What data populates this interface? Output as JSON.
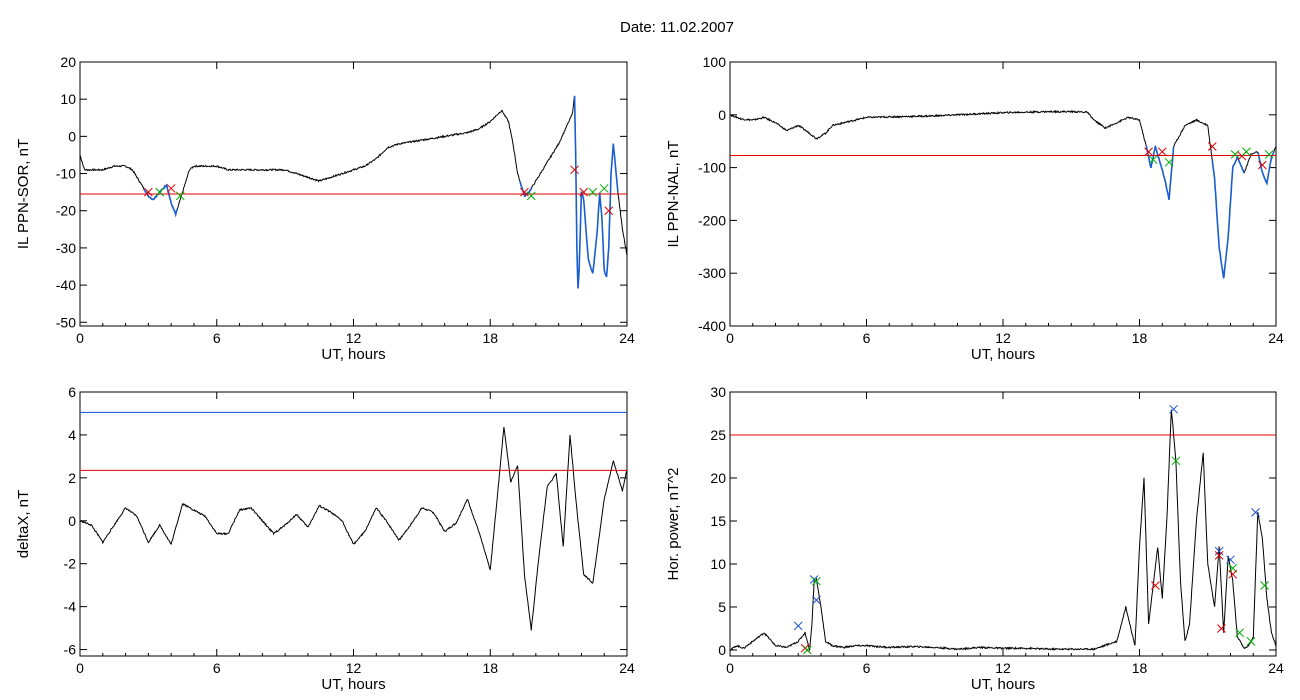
{
  "figure": {
    "title": "Date:  11.02.2007"
  },
  "colors": {
    "trace": "#000000",
    "threshold_red": "#e00000",
    "threshold_blue": "#0050d0",
    "highlight_blue": "#1a5fd0",
    "marker_red": "#e00000",
    "marker_green": "#00b000",
    "marker_blue": "#1a50d0"
  },
  "chart_data": [
    {
      "type": "line",
      "panel": "top-left",
      "xlabel": "UT, hours",
      "ylabel": "IL PPN-SOR, nT",
      "xlim": [
        0,
        24
      ],
      "ylim": [
        -51,
        20
      ],
      "xticks": [
        0,
        6,
        12,
        18,
        24
      ],
      "yticks": [
        20,
        10,
        0,
        -10,
        -20,
        -30,
        -40,
        -50
      ],
      "series": [
        {
          "x": [
            0,
            0.2,
            0.5,
            1,
            1.5,
            2,
            2.3,
            2.6,
            2.8,
            3,
            3.2,
            3.5,
            3.8,
            4.0,
            4.2,
            4.4,
            4.6,
            4.8,
            5,
            5.5,
            6,
            6.5,
            7,
            8,
            9,
            10,
            10.5,
            11,
            12,
            12.5,
            13,
            13.5,
            14,
            15,
            16,
            17,
            17.5,
            18,
            18.5,
            18.8,
            19,
            19.2,
            19.5,
            19.7,
            20,
            20.5,
            21,
            21.3,
            21.6,
            21.7,
            21.75,
            21.8,
            21.85,
            21.9,
            22.0,
            22.1,
            22.3,
            22.5,
            22.7,
            22.8,
            22.9,
            23.0,
            23.1,
            23.2,
            23.3,
            23.4,
            23.6,
            23.8,
            24
          ],
          "y": [
            -5,
            -9,
            -9,
            -9,
            -8,
            -8,
            -9,
            -12,
            -14,
            -16,
            -17,
            -15,
            -13,
            -18,
            -21,
            -17,
            -13,
            -9,
            -8,
            -8,
            -8,
            -9,
            -9,
            -9,
            -9,
            -11,
            -12,
            -11,
            -9,
            -8,
            -6,
            -3,
            -2,
            -1,
            0,
            1,
            2,
            4,
            7,
            4,
            -2,
            -10,
            -16,
            -15,
            -12,
            -7,
            -2,
            2,
            6,
            11,
            -5,
            -30,
            -41,
            -36,
            -15,
            -17,
            -33,
            -37,
            -25,
            -15,
            -22,
            -36,
            -38,
            -30,
            -10,
            -2,
            -15,
            -25,
            -32
          ]
        }
      ],
      "highlight_segments": [
        [
          2.8,
          4.3
        ],
        [
          19.3,
          19.8
        ],
        [
          21.7,
          23.6
        ]
      ],
      "thresholds": [
        {
          "y": -15.5,
          "color": "red"
        }
      ],
      "markers": [
        {
          "x": 3.0,
          "y": -15,
          "color": "red"
        },
        {
          "x": 3.5,
          "y": -15,
          "color": "green"
        },
        {
          "x": 4.0,
          "y": -14,
          "color": "red"
        },
        {
          "x": 4.4,
          "y": -16,
          "color": "green"
        },
        {
          "x": 19.5,
          "y": -15,
          "color": "red"
        },
        {
          "x": 19.8,
          "y": -16,
          "color": "green"
        },
        {
          "x": 21.7,
          "y": -9,
          "color": "red"
        },
        {
          "x": 22.1,
          "y": -15,
          "color": "red"
        },
        {
          "x": 22.5,
          "y": -15,
          "color": "green"
        },
        {
          "x": 23.2,
          "y": -20,
          "color": "red"
        },
        {
          "x": 23.0,
          "y": -14,
          "color": "green"
        }
      ]
    },
    {
      "type": "line",
      "panel": "top-right",
      "xlabel": "UT, hours",
      "ylabel": "IL PPN-NAL, nT",
      "xlim": [
        0,
        24
      ],
      "ylim": [
        -400,
        100
      ],
      "xticks": [
        0,
        6,
        12,
        18,
        24
      ],
      "yticks": [
        100,
        0,
        -100,
        -200,
        -300,
        -400
      ],
      "series": [
        {
          "x": [
            0,
            0.5,
            1,
            1.5,
            2,
            2.5,
            3,
            3.5,
            3.8,
            4.2,
            4.5,
            5,
            6,
            7,
            8,
            9,
            10,
            11,
            12,
            13,
            14,
            15,
            15.7,
            16,
            16.5,
            17,
            17.5,
            18,
            18.3,
            18.5,
            18.7,
            18.9,
            19.1,
            19.3,
            19.5,
            20,
            20.5,
            21,
            21.3,
            21.5,
            21.7,
            21.9,
            22.1,
            22.3,
            22.6,
            22.9,
            23.2,
            23.4,
            23.6,
            23.8,
            24
          ],
          "y": [
            0,
            -8,
            -10,
            -5,
            -15,
            -30,
            -20,
            -35,
            -45,
            -35,
            -20,
            -15,
            -5,
            -4,
            -3,
            -2,
            0,
            2,
            4,
            5,
            6,
            6,
            5,
            -10,
            -25,
            -15,
            -5,
            -10,
            -60,
            -100,
            -60,
            -90,
            -120,
            -160,
            -60,
            -20,
            -10,
            -20,
            -120,
            -250,
            -310,
            -230,
            -100,
            -80,
            -110,
            -75,
            -70,
            -110,
            -130,
            -80,
            -60
          ]
        }
      ],
      "highlight_segments": [
        [
          18.3,
          19.5
        ],
        [
          21.2,
          22.6
        ],
        [
          23.2,
          23.9
        ]
      ],
      "thresholds": [
        {
          "y": -77,
          "color": "red"
        }
      ],
      "markers": [
        {
          "x": 18.4,
          "y": -70,
          "color": "red"
        },
        {
          "x": 18.6,
          "y": -85,
          "color": "green"
        },
        {
          "x": 19.0,
          "y": -70,
          "color": "red"
        },
        {
          "x": 19.3,
          "y": -90,
          "color": "green"
        },
        {
          "x": 21.2,
          "y": -60,
          "color": "red"
        },
        {
          "x": 22.2,
          "y": -75,
          "color": "green"
        },
        {
          "x": 22.5,
          "y": -78,
          "color": "red"
        },
        {
          "x": 22.7,
          "y": -70,
          "color": "green"
        },
        {
          "x": 23.4,
          "y": -95,
          "color": "red"
        },
        {
          "x": 23.7,
          "y": -75,
          "color": "green"
        }
      ]
    },
    {
      "type": "line",
      "panel": "bottom-left",
      "xlabel": "UT, hours",
      "ylabel": "deltaX, nT",
      "xlim": [
        0,
        24
      ],
      "ylim": [
        -6.3,
        6
      ],
      "xticks": [
        0,
        6,
        12,
        18,
        24
      ],
      "yticks": [
        6,
        4,
        2,
        0,
        -2,
        -4,
        -6
      ],
      "series": [
        {
          "x": [
            0,
            0.5,
            1,
            1.5,
            2,
            2.5,
            3,
            3.5,
            4,
            4.5,
            5,
            5.5,
            6,
            6.5,
            7,
            7.5,
            8,
            8.5,
            9,
            9.5,
            10,
            10.5,
            11,
            11.5,
            12,
            12.5,
            13,
            13.5,
            14,
            14.5,
            15,
            15.5,
            16,
            16.5,
            17,
            17.5,
            18,
            18.3,
            18.6,
            18.9,
            19.2,
            19.5,
            19.8,
            20.1,
            20.5,
            20.9,
            21.2,
            21.5,
            21.8,
            22.1,
            22.5,
            23,
            23.4,
            23.8,
            24
          ],
          "y": [
            0,
            -0.2,
            -1,
            -0.2,
            0.6,
            0.2,
            -1,
            -0.2,
            -1.1,
            0.8,
            0.5,
            0.2,
            -0.6,
            -0.6,
            0.5,
            0.6,
            0,
            -0.6,
            -0.2,
            0.3,
            -0.3,
            0.7,
            0.4,
            0,
            -1.1,
            -0.5,
            0.6,
            -0.1,
            -0.9,
            -0.2,
            0.6,
            0.4,
            -0.5,
            -0.1,
            1,
            -0.5,
            -2.3,
            1,
            4.4,
            1.8,
            2.6,
            -2.5,
            -5.1,
            -2,
            1.6,
            2.2,
            -1.2,
            4,
            0.5,
            -2.5,
            -2.9,
            1,
            2.8,
            1.4,
            2.4
          ]
        }
      ],
      "thresholds": [
        {
          "y": 5.05,
          "color": "blue"
        },
        {
          "y": 2.35,
          "color": "red"
        }
      ]
    },
    {
      "type": "line",
      "panel": "bottom-right",
      "xlabel": "UT, hours",
      "ylabel": "Hor. power, nT^2",
      "xlim": [
        0,
        24
      ],
      "ylim": [
        -0.7,
        30
      ],
      "xticks": [
        0,
        6,
        12,
        18,
        24
      ],
      "yticks": [
        30,
        25,
        20,
        15,
        10,
        5,
        0
      ],
      "series": [
        {
          "x": [
            0,
            0.3,
            0.6,
            1,
            1.5,
            2,
            2.5,
            3,
            3.3,
            3.5,
            3.6,
            3.7,
            3.8,
            4.0,
            4.2,
            4.5,
            5,
            5.5,
            6,
            7,
            8,
            9,
            10,
            11,
            12,
            13,
            14,
            15,
            16,
            17,
            17.4,
            17.8,
            18.0,
            18.2,
            18.4,
            18.8,
            19.0,
            19.2,
            19.4,
            19.6,
            19.8,
            20.0,
            20.2,
            20.5,
            20.8,
            21.0,
            21.3,
            21.5,
            21.7,
            21.9,
            22.1,
            22.3,
            22.6,
            22.8,
            23.0,
            23.2,
            23.4,
            23.6,
            23.8,
            24
          ],
          "y": [
            0,
            0.5,
            0.2,
            1,
            2,
            0.5,
            0.3,
            1,
            2,
            0,
            3,
            8,
            8.2,
            5,
            1,
            0.5,
            0.3,
            0.5,
            0.5,
            0.3,
            0.4,
            0.3,
            0.1,
            0.3,
            0.2,
            0.2,
            0.1,
            0.1,
            0.1,
            1,
            5,
            0.5,
            12,
            20,
            3,
            12,
            6,
            15,
            28,
            22,
            8,
            1,
            3,
            15,
            23,
            10,
            5,
            12,
            2,
            11,
            8,
            1.5,
            0.2,
            0.5,
            1.5,
            16,
            13,
            6,
            2,
            0.5
          ]
        }
      ],
      "thresholds": [
        {
          "y": 25,
          "color": "red"
        }
      ],
      "markers": [
        {
          "x": 3.0,
          "y": 2.8,
          "color": "blue"
        },
        {
          "x": 3.3,
          "y": 0.2,
          "color": "red"
        },
        {
          "x": 3.4,
          "y": 0,
          "color": "green"
        },
        {
          "x": 3.7,
          "y": 8.2,
          "color": "blue"
        },
        {
          "x": 3.8,
          "y": 8,
          "color": "green"
        },
        {
          "x": 3.8,
          "y": 5.8,
          "color": "blue"
        },
        {
          "x": 18.7,
          "y": 7.5,
          "color": "red"
        },
        {
          "x": 19.5,
          "y": 28,
          "color": "blue"
        },
        {
          "x": 19.6,
          "y": 22,
          "color": "green"
        },
        {
          "x": 21.5,
          "y": 11.5,
          "color": "blue"
        },
        {
          "x": 21.5,
          "y": 11,
          "color": "red"
        },
        {
          "x": 21.6,
          "y": 2.5,
          "color": "red"
        },
        {
          "x": 22.0,
          "y": 10.5,
          "color": "blue"
        },
        {
          "x": 22.1,
          "y": 9.5,
          "color": "green"
        },
        {
          "x": 22.1,
          "y": 8.8,
          "color": "red"
        },
        {
          "x": 22.4,
          "y": 2,
          "color": "green"
        },
        {
          "x": 22.9,
          "y": 1,
          "color": "green"
        },
        {
          "x": 23.1,
          "y": 16,
          "color": "blue"
        },
        {
          "x": 23.5,
          "y": 7.5,
          "color": "green"
        }
      ]
    }
  ]
}
